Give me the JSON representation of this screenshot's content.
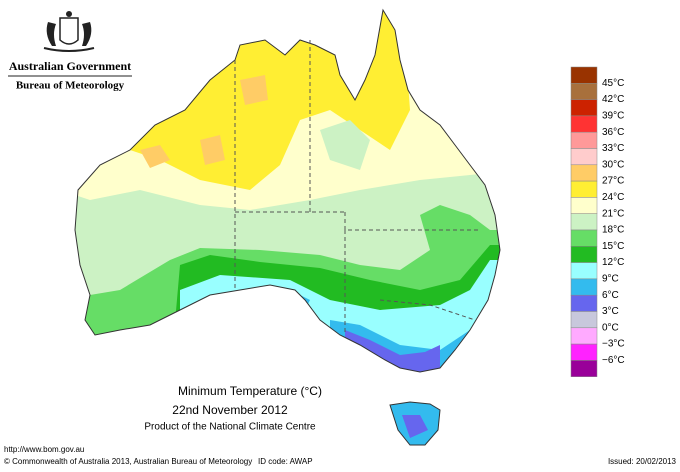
{
  "header": {
    "government": "Australian Government",
    "bureau": "Bureau of Meteorology"
  },
  "title": {
    "line1": "Minimum Temperature (°C)",
    "line2": "22nd November 2012",
    "line3": "Product of the National Climate Centre"
  },
  "legend": {
    "colors": [
      "#993300",
      "#a8703c",
      "#cc2200",
      "#ff3333",
      "#ff9999",
      "#ffcccc",
      "#ffcc66",
      "#ffee33",
      "#ffffcc",
      "#ccf2c4",
      "#66dd66",
      "#22bb22",
      "#99ffff",
      "#33bbee",
      "#6666ee",
      "#c8c8dc",
      "#ffaaff",
      "#ff22ff",
      "#990099"
    ],
    "labels": [
      "45°C",
      "42°C",
      "39°C",
      "36°C",
      "33°C",
      "30°C",
      "27°C",
      "24°C",
      "21°C",
      "18°C",
      "15°C",
      "12°C",
      "9°C",
      "6°C",
      "3°C",
      "0°C",
      "−3°C",
      "−6°C"
    ]
  },
  "footer": {
    "url": "http://www.bom.gov.au",
    "copyright": "© Commonwealth of Australia 2013, Australian Bureau of Meteorology",
    "id_code": "ID code: AWAP",
    "issued": "Issued: 20/02/2013"
  }
}
